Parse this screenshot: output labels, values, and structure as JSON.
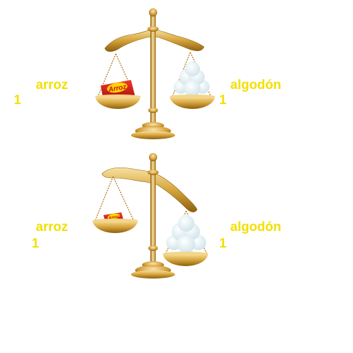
{
  "scales": [
    {
      "id": "top",
      "state": "balanced",
      "left_pan": {
        "item": "arroz",
        "count": "1",
        "package_text": "Arroz",
        "icon": "rice-package-icon"
      },
      "right_pan": {
        "item": "algodón",
        "count": "1",
        "icon": "cotton-pile-icon"
      }
    },
    {
      "id": "bottom",
      "state": "tilted-right-down",
      "left_pan": {
        "item": "arroz",
        "count": "1",
        "package_text": "Arroz",
        "icon": "rice-package-icon"
      },
      "right_pan": {
        "item": "algodón",
        "count": "1",
        "icon": "cotton-pile-icon"
      }
    }
  ],
  "colors": {
    "label": "#f2e000",
    "gold_light": "#f6d98a",
    "gold_mid": "#d8a83e",
    "gold_dark": "#9a6a14",
    "package_red": "#d01818",
    "package_yellow": "#ffd200",
    "cotton": "#eef6f8"
  }
}
